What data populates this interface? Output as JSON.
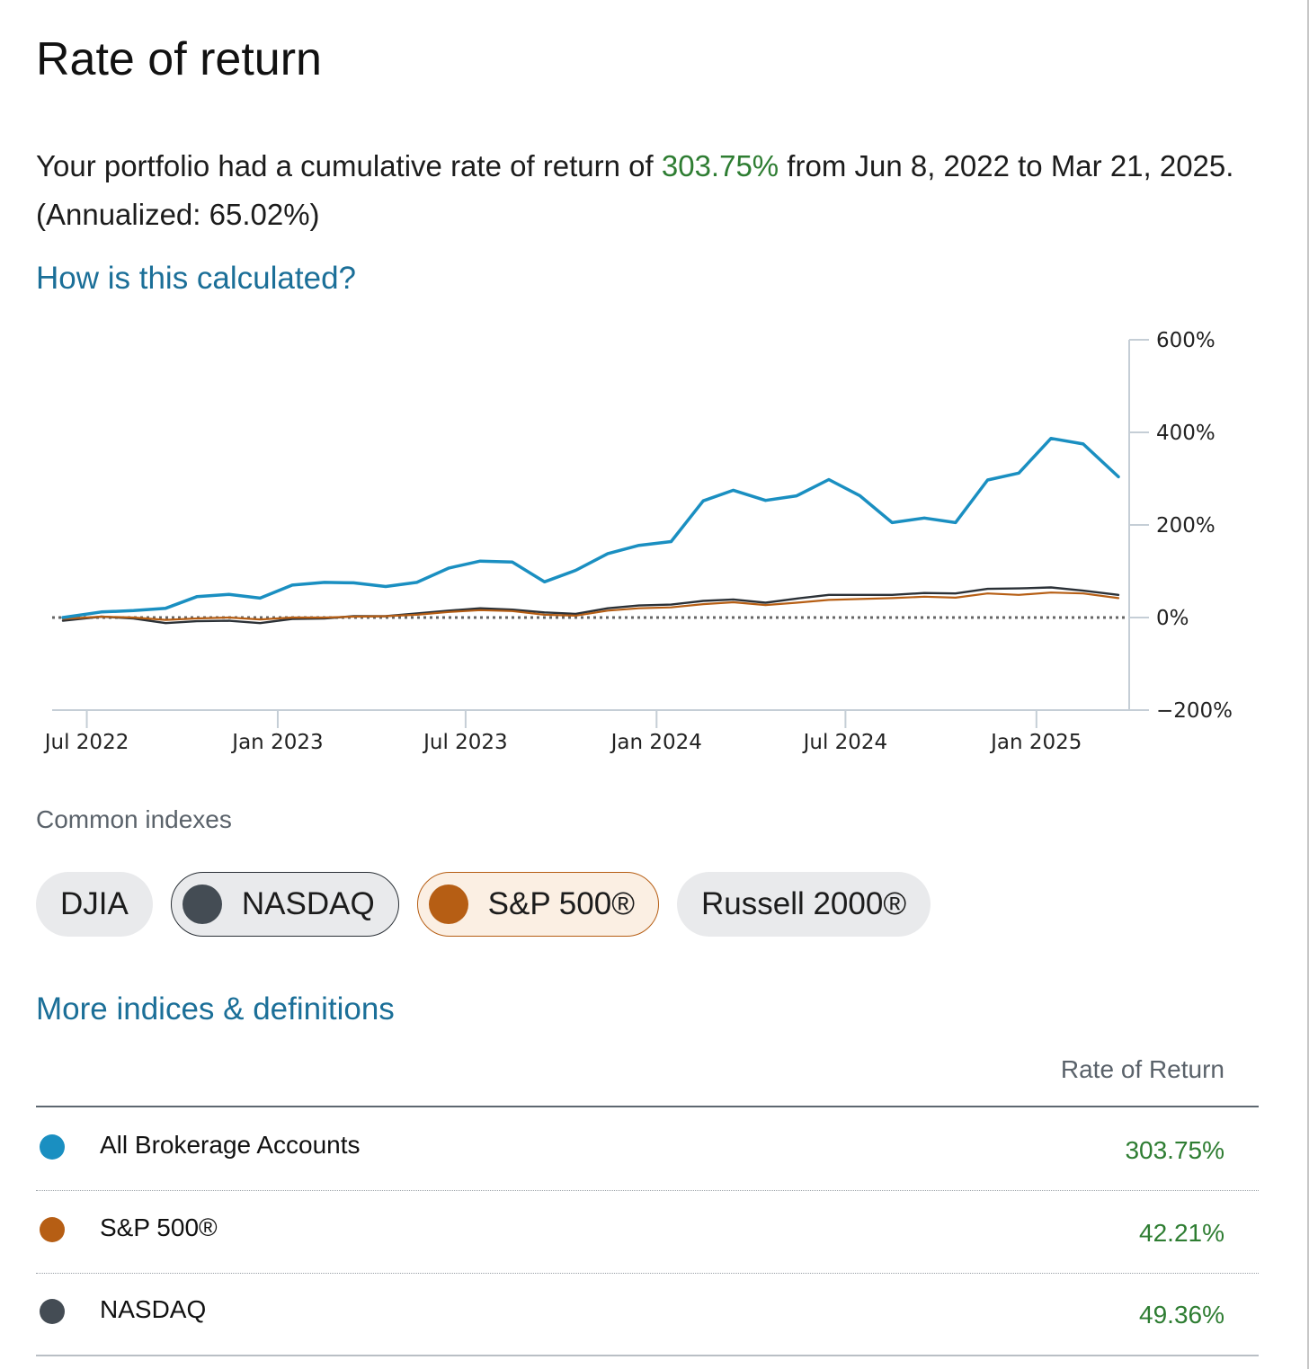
{
  "page": {
    "title": "Rate of return",
    "summary_prefix": "Your portfolio had a cumulative rate of return of ",
    "summary_return": "303.75%",
    "summary_suffix": " from Jun 8, 2022 to Mar 21, 2025. (Annualized: 65.02%)",
    "how_link": "How is this calculated?",
    "more_link": "More indices & definitions"
  },
  "chart_data": {
    "type": "line",
    "y_ticks": [
      "600%",
      "400%",
      "200%",
      "0%",
      "−200%"
    ],
    "y_range": [
      -200,
      600
    ],
    "x_ticks": [
      "Jul 2022",
      "Jan 2023",
      "Jul 2023",
      "Jan 2024",
      "Jul 2024",
      "Jan 2025"
    ],
    "x_range": [
      "2022-06-08",
      "2025-03-21"
    ],
    "zero_reference_line": "dotted",
    "series": [
      {
        "name": "All Brokerage Accounts",
        "color": "#1a8fc1",
        "points": [
          [
            "2022-06-08",
            0
          ],
          [
            "2022-07-15",
            12
          ],
          [
            "2022-08-15",
            15
          ],
          [
            "2022-09-15",
            20
          ],
          [
            "2022-10-15",
            45
          ],
          [
            "2022-11-15",
            50
          ],
          [
            "2022-12-15",
            42
          ],
          [
            "2023-01-15",
            70
          ],
          [
            "2023-02-15",
            76
          ],
          [
            "2023-03-15",
            75
          ],
          [
            "2023-04-15",
            67
          ],
          [
            "2023-05-15",
            76
          ],
          [
            "2023-06-15",
            107
          ],
          [
            "2023-07-15",
            122
          ],
          [
            "2023-08-15",
            120
          ],
          [
            "2023-09-15",
            77
          ],
          [
            "2023-10-15",
            102
          ],
          [
            "2023-11-15",
            138
          ],
          [
            "2023-12-15",
            156
          ],
          [
            "2024-01-15",
            164
          ],
          [
            "2024-02-15",
            252
          ],
          [
            "2024-03-15",
            275
          ],
          [
            "2024-04-15",
            253
          ],
          [
            "2024-05-15",
            263
          ],
          [
            "2024-06-15",
            298
          ],
          [
            "2024-07-15",
            263
          ],
          [
            "2024-08-15",
            205
          ],
          [
            "2024-09-15",
            215
          ],
          [
            "2024-10-15",
            205
          ],
          [
            "2024-11-15",
            297
          ],
          [
            "2024-12-15",
            312
          ],
          [
            "2025-01-15",
            387
          ],
          [
            "2025-02-15",
            375
          ],
          [
            "2025-03-21",
            304
          ]
        ]
      },
      {
        "name": "S&P 500®",
        "color": "#b65e14",
        "points": [
          [
            "2022-06-08",
            -3
          ],
          [
            "2022-07-15",
            2
          ],
          [
            "2022-08-15",
            0
          ],
          [
            "2022-09-15",
            -5
          ],
          [
            "2022-10-15",
            -2
          ],
          [
            "2022-11-15",
            0
          ],
          [
            "2022-12-15",
            -4
          ],
          [
            "2023-01-15",
            0
          ],
          [
            "2023-02-15",
            0
          ],
          [
            "2023-03-15",
            2
          ],
          [
            "2023-04-15",
            3
          ],
          [
            "2023-05-15",
            6
          ],
          [
            "2023-06-15",
            12
          ],
          [
            "2023-07-15",
            16
          ],
          [
            "2023-08-15",
            14
          ],
          [
            "2023-09-15",
            6
          ],
          [
            "2023-10-15",
            4
          ],
          [
            "2023-11-15",
            15
          ],
          [
            "2023-12-15",
            20
          ],
          [
            "2024-01-15",
            22
          ],
          [
            "2024-02-15",
            29
          ],
          [
            "2024-03-15",
            33
          ],
          [
            "2024-04-15",
            27
          ],
          [
            "2024-05-15",
            32
          ],
          [
            "2024-06-15",
            38
          ],
          [
            "2024-07-15",
            40
          ],
          [
            "2024-08-15",
            42
          ],
          [
            "2024-09-15",
            45
          ],
          [
            "2024-10-15",
            43
          ],
          [
            "2024-11-15",
            52
          ],
          [
            "2024-12-15",
            49
          ],
          [
            "2025-01-15",
            54
          ],
          [
            "2025-02-15",
            52
          ],
          [
            "2025-03-21",
            42
          ]
        ]
      },
      {
        "name": "NASDAQ",
        "color": "#2b3137",
        "points": [
          [
            "2022-06-08",
            -7
          ],
          [
            "2022-07-15",
            2
          ],
          [
            "2022-08-15",
            -2
          ],
          [
            "2022-09-15",
            -12
          ],
          [
            "2022-10-15",
            -8
          ],
          [
            "2022-11-15",
            -7
          ],
          [
            "2022-12-15",
            -12
          ],
          [
            "2023-01-15",
            -3
          ],
          [
            "2023-02-15",
            -2
          ],
          [
            "2023-03-15",
            3
          ],
          [
            "2023-04-15",
            3
          ],
          [
            "2023-05-15",
            9
          ],
          [
            "2023-06-15",
            15
          ],
          [
            "2023-07-15",
            20
          ],
          [
            "2023-08-15",
            17
          ],
          [
            "2023-09-15",
            11
          ],
          [
            "2023-10-15",
            8
          ],
          [
            "2023-11-15",
            20
          ],
          [
            "2023-12-15",
            26
          ],
          [
            "2024-01-15",
            28
          ],
          [
            "2024-02-15",
            36
          ],
          [
            "2024-03-15",
            39
          ],
          [
            "2024-04-15",
            32
          ],
          [
            "2024-05-15",
            41
          ],
          [
            "2024-06-15",
            49
          ],
          [
            "2024-07-15",
            49
          ],
          [
            "2024-08-15",
            49
          ],
          [
            "2024-09-15",
            53
          ],
          [
            "2024-10-15",
            52
          ],
          [
            "2024-11-15",
            62
          ],
          [
            "2024-12-15",
            63
          ],
          [
            "2025-01-15",
            65
          ],
          [
            "2025-02-15",
            58
          ],
          [
            "2025-03-21",
            49
          ]
        ]
      }
    ]
  },
  "indexes": {
    "label": "Common indexes",
    "chips": [
      {
        "label": "DJIA",
        "selected": false
      },
      {
        "label": "NASDAQ",
        "selected": true,
        "color": "#444c54"
      },
      {
        "label": "S&P 500®",
        "selected": true,
        "color": "#b65e14"
      },
      {
        "label": "Russell 2000®",
        "selected": false
      }
    ]
  },
  "table": {
    "header": "Rate of Return",
    "rows": [
      {
        "name": "All Brokerage Accounts",
        "value": "303.75%",
        "color": "#1a8fc1"
      },
      {
        "name": "S&P 500®",
        "value": "42.21%",
        "color": "#b65e14"
      },
      {
        "name": "NASDAQ",
        "value": "49.36%",
        "color": "#444c54"
      }
    ]
  },
  "colors": {
    "link": "#1b6f98",
    "positive": "#2e7d32"
  }
}
